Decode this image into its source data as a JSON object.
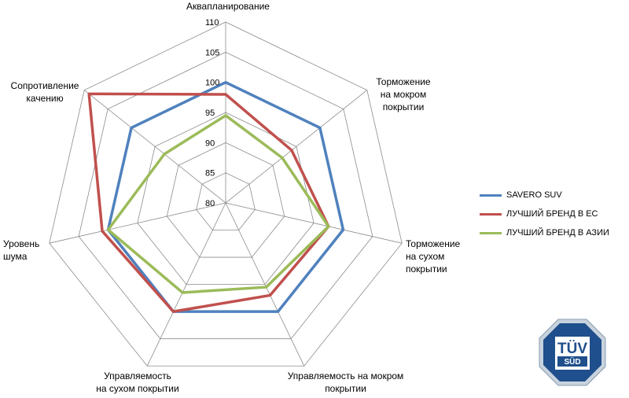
{
  "chart_data": {
    "type": "radar",
    "axes": [
      "Аквапланирование",
      "Торможение на мокром покрытии",
      "Торможение на сухом покрытии",
      "Управляемость на мокром покрытии",
      "Управляемость на сухом покрытии",
      "Уровень шума",
      "Сопротивление качению"
    ],
    "axis_label_lines": [
      [
        "Аквапланирование"
      ],
      [
        "Торможение",
        "на мокром",
        "покрытии"
      ],
      [
        "Торможение",
        "на сухом",
        "покрытии"
      ],
      [
        "Управляемость на мокром",
        "покрытии"
      ],
      [
        "Управляемость",
        "на сухом покрытии"
      ],
      [
        "Уровень",
        "шума"
      ],
      [
        "Сопротивление",
        "качению"
      ]
    ],
    "ticks": [
      "80",
      "85",
      "90",
      "95",
      "100",
      "105",
      "110"
    ],
    "rlim": [
      80,
      110
    ],
    "grid": true,
    "legend_position": "right",
    "series": [
      {
        "name": "SAVERO SUV",
        "color": "#4f81bd",
        "values": [
          100,
          100,
          100,
          100,
          100,
          100,
          100
        ]
      },
      {
        "name": "ЛУЧШИЙ БРЕНД В ЕС",
        "color": "#c0504d",
        "values": [
          98,
          94,
          97.5,
          97,
          100,
          101,
          109
        ]
      },
      {
        "name": "ЛУЧШИЙ БРЕНД В АЗИИ",
        "color": "#9bbb59",
        "values": [
          94.5,
          92,
          97.5,
          95.5,
          96.5,
          100,
          93
        ]
      }
    ]
  },
  "badge": {
    "text": "TÜV",
    "subtext": "SÜD"
  }
}
